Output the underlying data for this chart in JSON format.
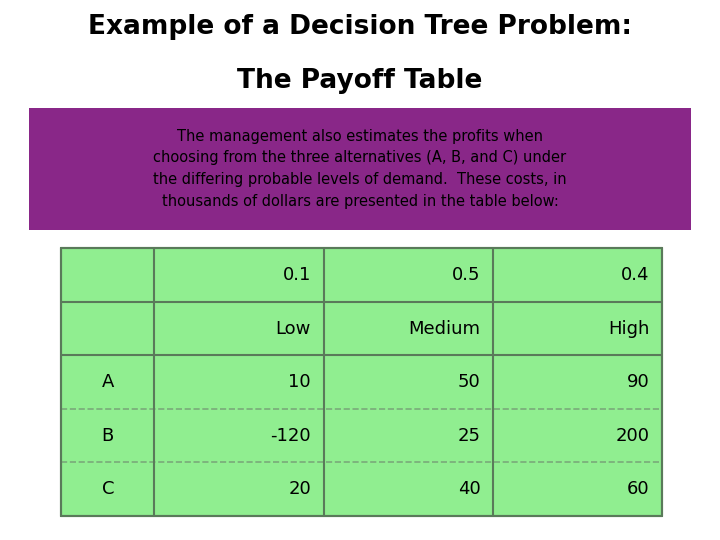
{
  "title_line1": "Example of a Decision Tree Problem:",
  "title_line2": "The Payoff Table",
  "description": "The management also estimates the profits when\nchoosing from the three alternatives (A, B, and C) under\nthe differing probable levels of demand.  These costs, in\nthousands of dollars are presented in the table below:",
  "desc_bg_color": "#892788",
  "table_bg_color": "#90EE90",
  "page_bg_color": "#FFFFFF",
  "table_border_color": "#5a7a5a",
  "dashed_line_color": "#7aaa7a",
  "vert_inner_color": "#5a7a5a",
  "title_color": "#000000",
  "desc_text_color": "#000000",
  "table_text_color": "#000000",
  "header_row1": [
    "",
    "0.1",
    "0.5",
    "0.4"
  ],
  "header_row2": [
    "",
    "Low",
    "Medium",
    "High"
  ],
  "data_rows": [
    [
      "A",
      "10",
      "50",
      "90"
    ],
    [
      "B",
      "-120",
      "25",
      "200"
    ],
    [
      "C",
      "20",
      "40",
      "60"
    ]
  ]
}
